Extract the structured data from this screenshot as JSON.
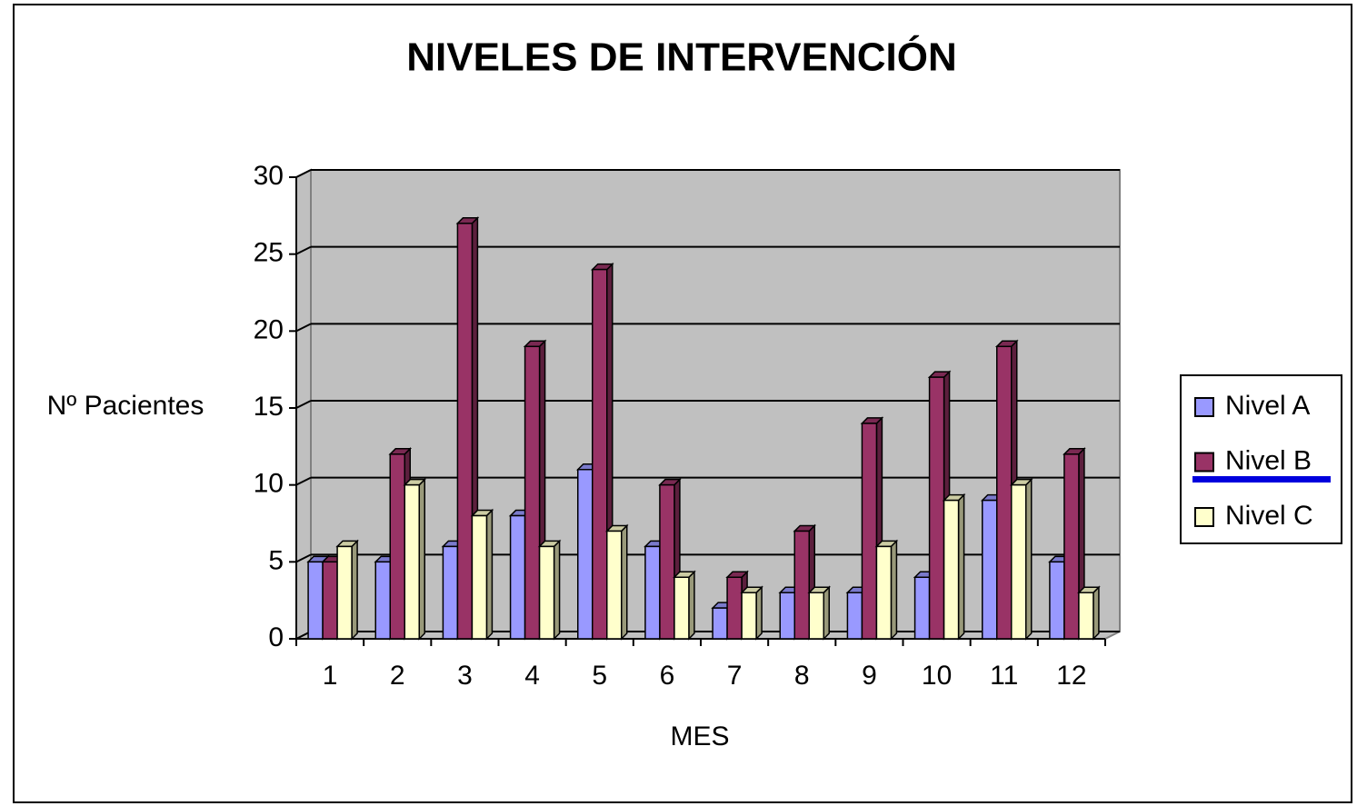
{
  "chart_data": {
    "type": "bar",
    "title": "NIVELES DE INTERVENCIÓN",
    "y_label": "Nº Pacientes",
    "x_label": "MES",
    "categories": [
      "1",
      "2",
      "3",
      "4",
      "5",
      "6",
      "7",
      "8",
      "9",
      "10",
      "11",
      "12"
    ],
    "series": [
      {
        "name": "Nivel A",
        "color": "#9999ff",
        "values": [
          5,
          5,
          6,
          8,
          11,
          6,
          2,
          3,
          3,
          4,
          9,
          5
        ]
      },
      {
        "name": "Nivel B",
        "color": "#993366",
        "values": [
          5,
          12,
          27,
          19,
          24,
          10,
          4,
          7,
          14,
          17,
          19,
          12
        ]
      },
      {
        "name": "Nivel C",
        "color": "#ffffcc",
        "values": [
          6,
          10,
          8,
          6,
          7,
          4,
          3,
          3,
          6,
          9,
          10,
          3
        ]
      }
    ],
    "ylim": [
      0,
      30
    ],
    "yticks": [
      0,
      5,
      10,
      15,
      20,
      25,
      30
    ],
    "grid": true,
    "legend": "right"
  }
}
